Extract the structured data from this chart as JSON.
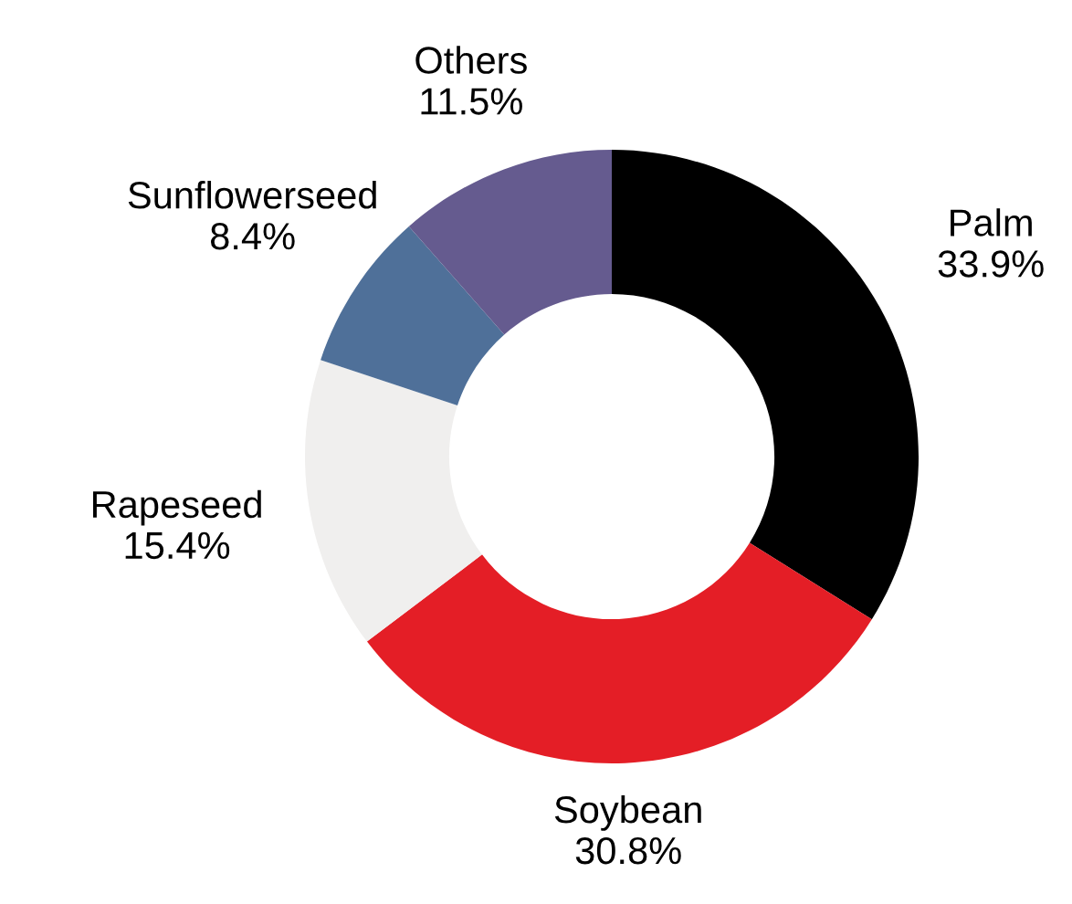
{
  "chart_data": {
    "type": "donut",
    "categories": [
      "Palm",
      "Soybean",
      "Rapeseed",
      "Sunflowerseed",
      "Others"
    ],
    "values": [
      33.9,
      30.8,
      15.4,
      8.4,
      11.5
    ],
    "colors": [
      "#000000",
      "#e41e26",
      "#f0efee",
      "#4f7099",
      "#655b8f"
    ],
    "value_labels": [
      "33.9%",
      "30.8%",
      "15.4%",
      "8.4%",
      "11.5%"
    ]
  }
}
